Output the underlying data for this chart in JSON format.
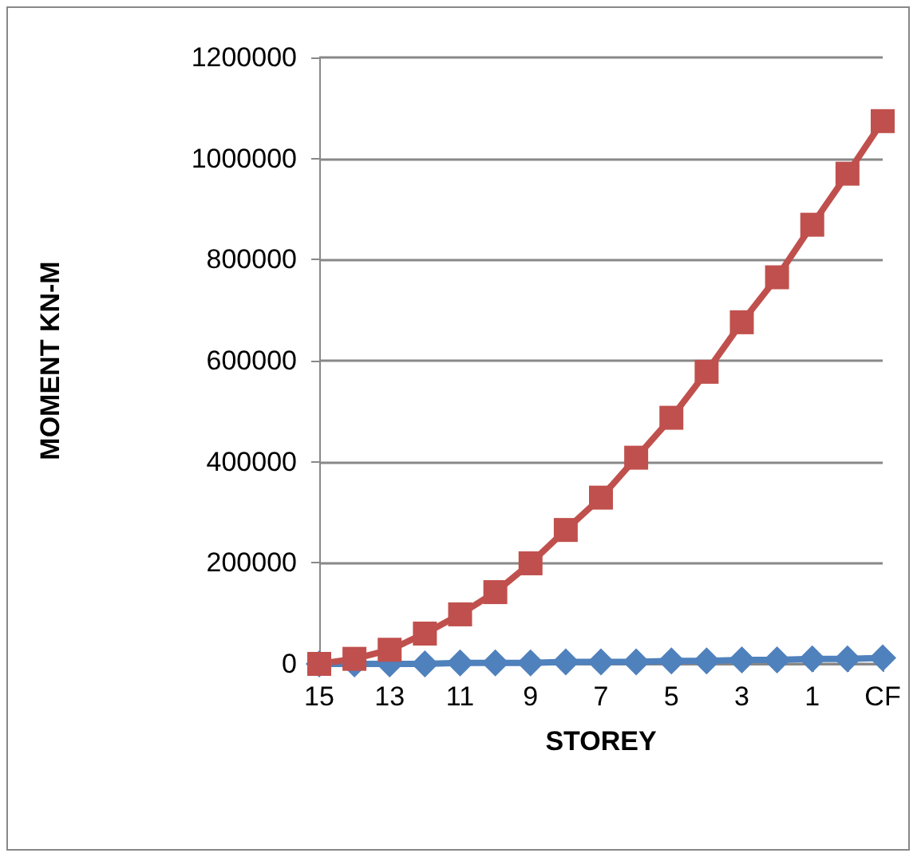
{
  "chart_data": {
    "type": "line",
    "xlabel": "STOREY",
    "ylabel": "MOMENT KN-M",
    "categories": [
      "15",
      null,
      "13",
      null,
      "11",
      null,
      "9",
      null,
      "7",
      null,
      "5",
      null,
      "3",
      null,
      "1",
      null,
      "CF"
    ],
    "series": [
      {
        "color": "#4f81bd",
        "marker": "diamond",
        "values": [
          0,
          0,
          0,
          0,
          2000,
          2000,
          2000,
          4000,
          4000,
          4000,
          6000,
          6000,
          8000,
          8000,
          10000,
          10000,
          12000
        ]
      },
      {
        "color": "#c0504d",
        "marker": "square",
        "values": [
          0,
          10000,
          28000,
          60000,
          98000,
          142000,
          199000,
          265000,
          329000,
          408000,
          487000,
          578000,
          676000,
          765000,
          869000,
          970000,
          1074000
        ]
      }
    ],
    "ylim": [
      0,
      1200000
    ],
    "yticks": [
      0,
      200000,
      400000,
      600000,
      800000,
      1000000,
      1200000
    ],
    "grid": "y"
  }
}
